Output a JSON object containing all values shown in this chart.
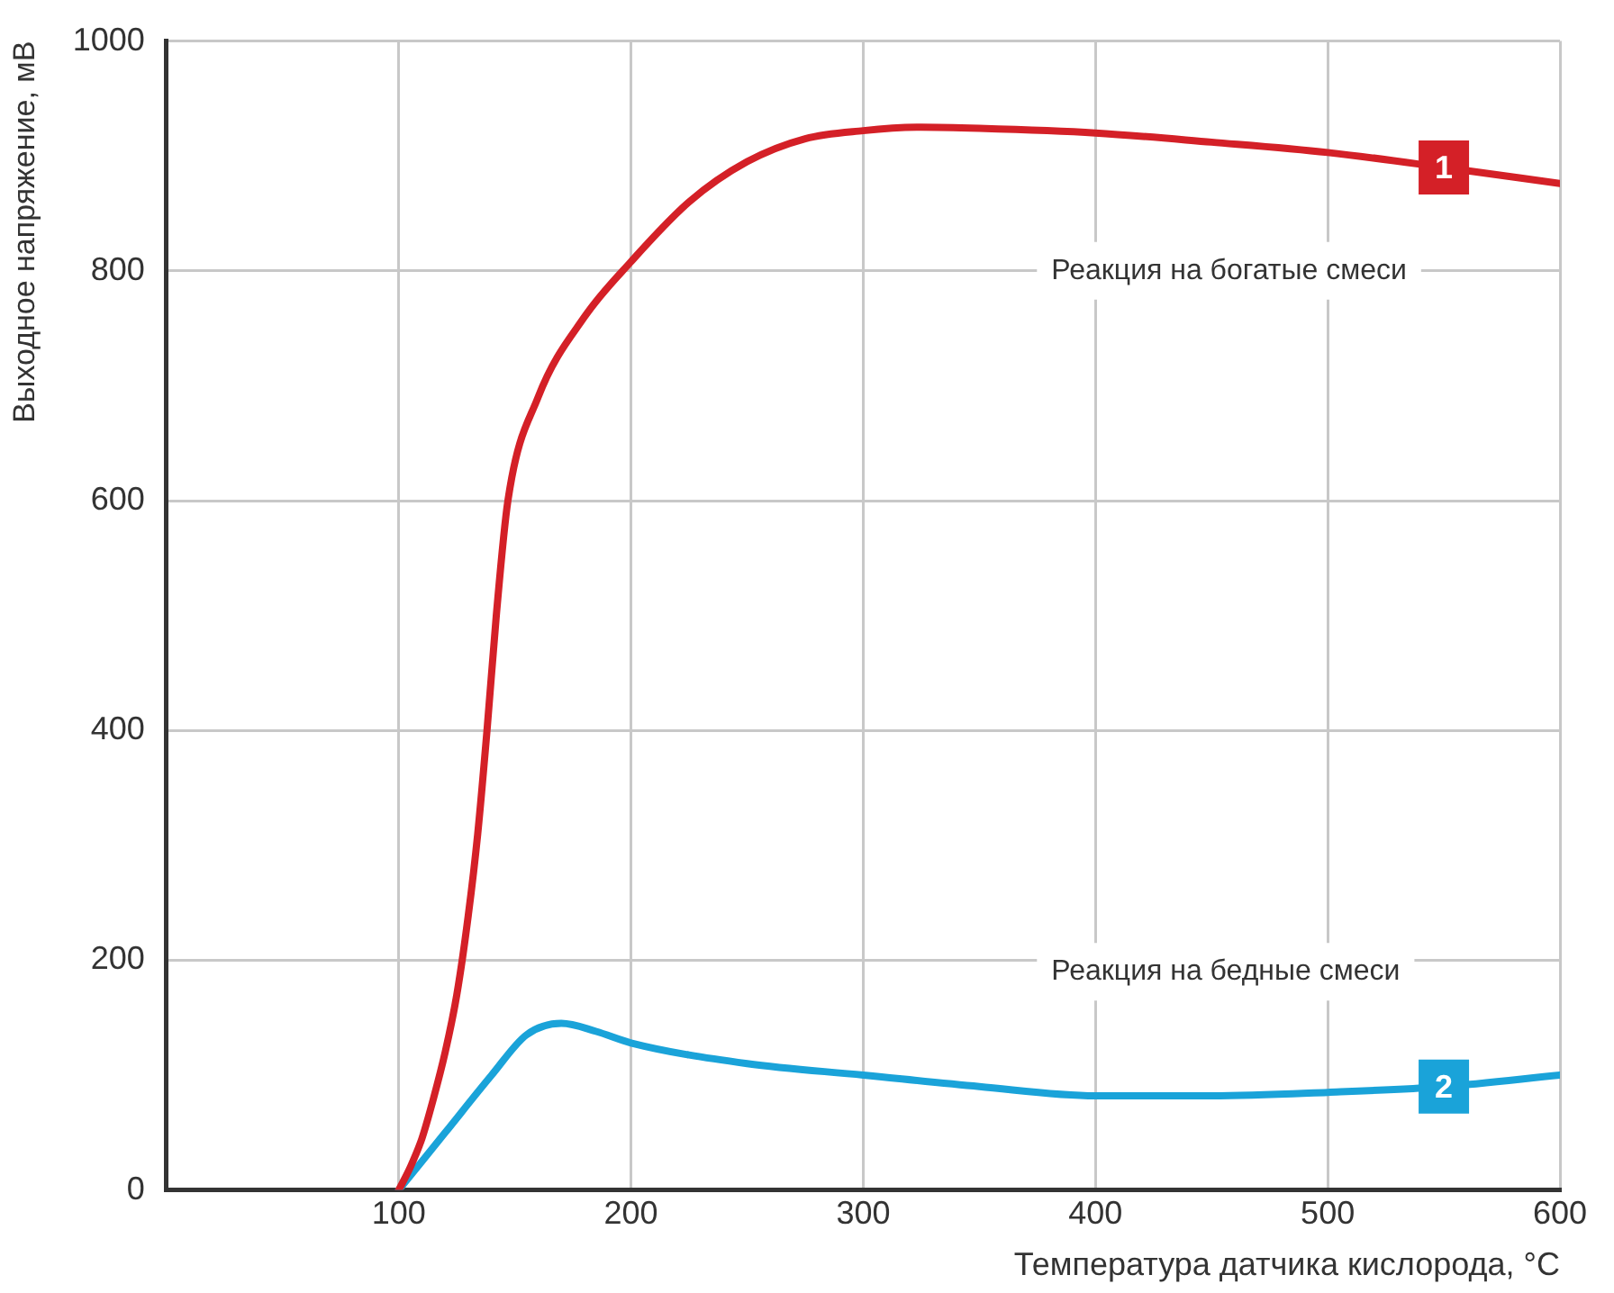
{
  "chart_data": {
    "type": "line",
    "xlabel": "Температура датчика кислорода, °C",
    "ylabel": "Выходное напряжение, мВ",
    "xlim": [
      0,
      600
    ],
    "xticks": [
      100,
      200,
      300,
      400,
      500,
      600
    ],
    "ylim": [
      0,
      1000
    ],
    "yticks": [
      0,
      200,
      400,
      600,
      800,
      1000
    ],
    "grid": true,
    "legend": false,
    "marker": "none",
    "line_style": "solid",
    "series": [
      {
        "name": "1",
        "color": "#d42027",
        "x": [
          100,
          105,
          110,
          115,
          120,
          125,
          130,
          134,
          138,
          142,
          147,
          160,
          180,
          200,
          225,
          250,
          275,
          300,
          325,
          350,
          400,
          450,
          500,
          550,
          600
        ],
        "values": [
          0,
          20,
          45,
          80,
          120,
          170,
          240,
          310,
          400,
          500,
          600,
          690,
          760,
          808,
          860,
          895,
          915,
          922,
          925,
          924,
          920,
          912,
          903,
          890,
          876
        ]
      },
      {
        "name": "2",
        "color": "#1aa3d9",
        "x": [
          100,
          120,
          140,
          155,
          170,
          185,
          200,
          250,
          300,
          350,
          400,
          450,
          500,
          550,
          600
        ],
        "values": [
          0,
          50,
          100,
          135,
          145,
          138,
          128,
          110,
          100,
          90,
          82,
          82,
          85,
          90,
          100
        ]
      }
    ],
    "annotations": [
      "Реакция на богатые смеси",
      "Реакция на бедные смеси"
    ]
  }
}
